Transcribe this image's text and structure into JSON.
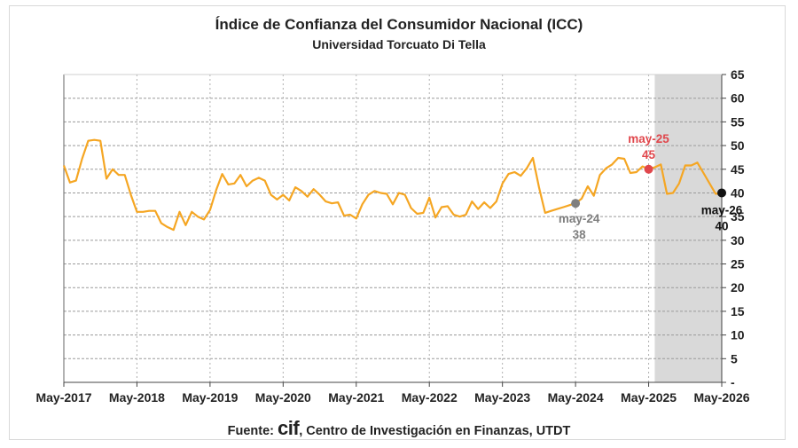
{
  "chart_data": {
    "type": "line",
    "title": "Índice de Confianza del Consumidor Nacional (ICC)",
    "subtitle": "Universidad Torcuato Di Tella",
    "xlabel": "",
    "ylabel": "",
    "ylim": [
      0,
      65
    ],
    "y_ticks": [
      "65",
      "60",
      "55",
      "50",
      "45",
      "40",
      "35",
      "30",
      "25",
      "20",
      "15",
      "10",
      "5",
      "-"
    ],
    "x_tick_labels": [
      "May-2017",
      "May-2018",
      "May-2019",
      "May-2020",
      "May-2021",
      "May-2022",
      "May-2023",
      "May-2024",
      "May-2025",
      "May-2026"
    ],
    "grid": true,
    "shaded_region": [
      "2025-06",
      "2026-05"
    ],
    "series": [
      {
        "color": "#f5a623",
        "x": [
          "2017-05",
          "2017-06",
          "2017-07",
          "2017-08",
          "2017-09",
          "2017-10",
          "2017-11",
          "2017-12",
          "2018-01",
          "2018-02",
          "2018-03",
          "2018-04",
          "2018-05",
          "2018-06",
          "2018-07",
          "2018-08",
          "2018-09",
          "2018-10",
          "2018-11",
          "2018-12",
          "2019-01",
          "2019-02",
          "2019-03",
          "2019-04",
          "2019-05",
          "2019-06",
          "2019-07",
          "2019-08",
          "2019-09",
          "2019-10",
          "2019-11",
          "2019-12",
          "2020-01",
          "2020-02",
          "2020-03",
          "2020-04",
          "2020-05",
          "2020-06",
          "2020-07",
          "2020-08",
          "2020-09",
          "2020-10",
          "2020-11",
          "2020-12",
          "2021-01",
          "2021-02",
          "2021-03",
          "2021-04",
          "2021-05",
          "2021-06",
          "2021-07",
          "2021-08",
          "2021-09",
          "2021-10",
          "2021-11",
          "2021-12",
          "2022-01",
          "2022-02",
          "2022-03",
          "2022-04",
          "2022-05",
          "2022-06",
          "2022-07",
          "2022-08",
          "2022-09",
          "2022-10",
          "2022-11",
          "2022-12",
          "2023-01",
          "2023-02",
          "2023-03",
          "2023-04",
          "2023-05",
          "2023-06",
          "2023-07",
          "2023-08",
          "2023-09",
          "2023-10",
          "2023-11",
          "2023-12",
          "2024-01",
          "2024-02",
          "2024-03",
          "2024-04",
          "2024-05",
          "2024-06",
          "2024-07",
          "2024-08",
          "2024-09",
          "2024-10",
          "2024-11",
          "2024-12",
          "2025-01",
          "2025-02",
          "2025-03",
          "2025-04",
          "2025-05",
          "2025-06",
          "2025-07",
          "2025-08",
          "2025-09",
          "2025-10",
          "2025-11",
          "2025-12",
          "2026-01",
          "2026-02",
          "2026-03",
          "2026-04",
          "2026-05"
        ],
        "y": [
          45.8,
          42.2,
          42.6,
          47.2,
          51.0,
          51.2,
          51.0,
          43.0,
          45.0,
          43.8,
          43.8,
          39.6,
          36.0,
          36.0,
          36.2,
          36.2,
          33.6,
          32.8,
          32.2,
          36.0,
          33.2,
          36.0,
          35.0,
          34.4,
          36.4,
          40.6,
          44.0,
          41.8,
          42.0,
          43.8,
          41.4,
          42.6,
          43.2,
          42.6,
          39.6,
          38.6,
          39.6,
          38.4,
          41.2,
          40.4,
          39.2,
          40.8,
          39.6,
          38.2,
          37.8,
          38.0,
          35.2,
          35.4,
          34.6,
          37.6,
          39.6,
          40.4,
          40.0,
          39.8,
          37.6,
          40.0,
          39.6,
          36.8,
          35.6,
          35.8,
          39.0,
          34.8,
          37.0,
          37.2,
          35.4,
          35.0,
          35.4,
          38.2,
          36.6,
          38.0,
          36.8,
          38.2,
          42.0,
          44.0,
          44.4,
          43.6,
          45.2,
          47.4,
          41.2,
          35.8,
          36.2,
          36.6,
          37.0,
          37.4,
          37.8,
          38.8,
          41.4,
          39.4,
          43.8,
          45.2,
          46.0,
          47.4,
          47.2,
          44.2,
          44.4,
          45.6,
          45.0,
          45.4,
          46.0,
          39.8,
          40.0,
          42.0,
          45.8,
          45.8,
          46.4,
          44.2,
          42.0,
          39.8,
          40.0
        ]
      }
    ],
    "annotations": [
      {
        "label": "may-24",
        "value": "38",
        "x": "2024-05",
        "y": 37.8,
        "color": "#7f7f7f"
      },
      {
        "label": "may-25",
        "value": "45",
        "x": "2025-05",
        "y": 45.0,
        "color": "#e0474c"
      },
      {
        "label": "may-26",
        "value": "40",
        "x": "2026-05",
        "y": 40.0,
        "color": "#111111"
      }
    ]
  },
  "source": {
    "prefix": "Fuente: ",
    "logo": "cif",
    "text": ", Centro de Investigación en Finanzas, UTDT"
  }
}
